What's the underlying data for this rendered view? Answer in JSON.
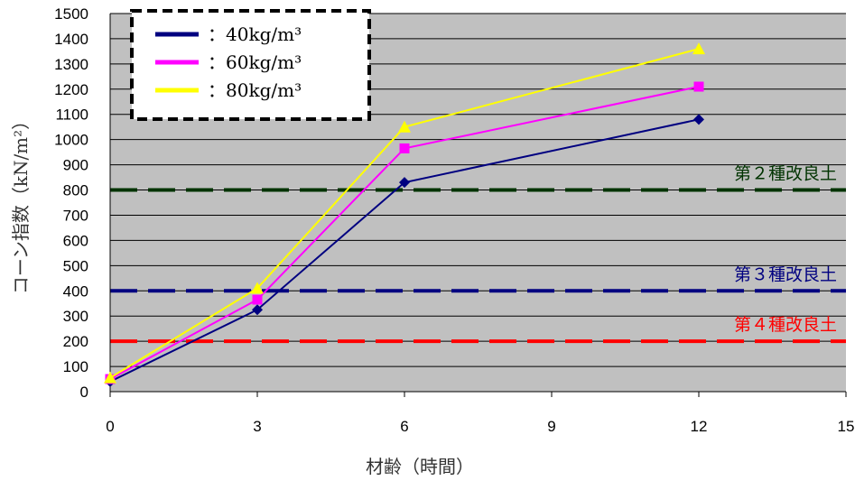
{
  "chart_data": {
    "type": "line",
    "xlabel": "材齢（時間）",
    "ylabel": "コーン指数（kN/m²）",
    "xlim": [
      0,
      15
    ],
    "ylim": [
      0,
      1500
    ],
    "x_ticks": [
      "0",
      "3",
      "6",
      "9",
      "12",
      "15"
    ],
    "y_ticks": [
      "0",
      "100",
      "200",
      "300",
      "400",
      "500",
      "600",
      "700",
      "800",
      "900",
      "1000",
      "1100",
      "1200",
      "1300",
      "1400",
      "1500"
    ],
    "grid": true,
    "legend_position": "top-left",
    "x": [
      0,
      3,
      6,
      12
    ],
    "series": [
      {
        "name": "：40kg/m³",
        "color": "#000080",
        "marker": "diamond",
        "values": [
          40,
          325,
          830,
          1080
        ]
      },
      {
        "name": "：60kg/m³",
        "color": "#ff00ff",
        "marker": "square",
        "values": [
          50,
          365,
          965,
          1210
        ]
      },
      {
        "name": "：80kg/m³",
        "color": "#ffff00",
        "marker": "triangle",
        "values": [
          55,
          410,
          1050,
          1360
        ]
      }
    ],
    "reference_lines": [
      {
        "label": "第２種改良土",
        "value": 800,
        "color": "#003300"
      },
      {
        "label": "第３種改良土",
        "value": 400,
        "color": "#000080"
      },
      {
        "label": "第４種改良土",
        "value": 200,
        "color": "#ff0000"
      }
    ]
  }
}
